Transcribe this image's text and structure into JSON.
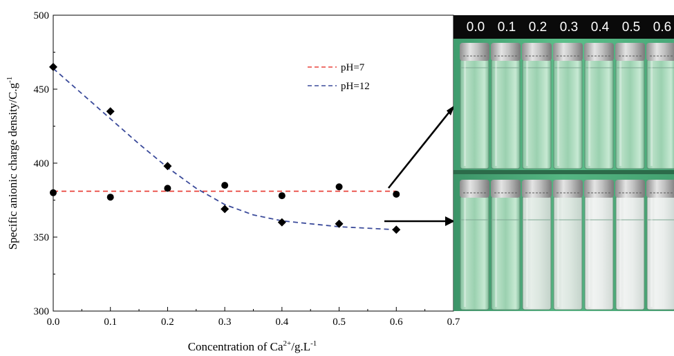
{
  "chart_data": {
    "type": "scatter",
    "xlabel_main": "Concentration of Ca",
    "xlabel_sup": "2+",
    "xlabel_unit": "/g.L",
    "xlabel_unit_sup": "-1",
    "ylabel_main": "Specific anionic charge density/C.g",
    "ylabel_sup": "-1",
    "xlim": [
      0.0,
      0.7
    ],
    "ylim": [
      300,
      500
    ],
    "x_ticks": [
      "0.0",
      "0.1",
      "0.2",
      "0.3",
      "0.4",
      "0.5",
      "0.6",
      "0.7"
    ],
    "y_ticks": [
      "300",
      "350",
      "400",
      "450",
      "500"
    ],
    "legend_position": "top-center",
    "series": [
      {
        "name": "pH=7",
        "marker": "circle",
        "line_color": "#e8423a",
        "x": [
          0.0,
          0.1,
          0.2,
          0.3,
          0.4,
          0.5,
          0.6
        ],
        "y": [
          380,
          377,
          383,
          385,
          378,
          384,
          379
        ],
        "fit": {
          "type": "constant",
          "value": 381
        }
      },
      {
        "name": "pH=12",
        "marker": "diamond",
        "line_color": "#3a4a9a",
        "x": [
          0.0,
          0.1,
          0.2,
          0.3,
          0.4,
          0.5,
          0.6
        ],
        "y": [
          465,
          435,
          398,
          369,
          360,
          359,
          355
        ],
        "fit": {
          "type": "curve",
          "x": [
            0.0,
            0.05,
            0.1,
            0.15,
            0.2,
            0.25,
            0.3,
            0.35,
            0.4,
            0.45,
            0.5,
            0.55,
            0.6
          ],
          "y": [
            464,
            447,
            430,
            413,
            397,
            383,
            372,
            365,
            361,
            359,
            357,
            356,
            355
          ]
        }
      }
    ]
  },
  "photo": {
    "labels": [
      "0.0",
      "0.1",
      "0.2",
      "0.3",
      "0.4",
      "0.5",
      "0.6"
    ]
  }
}
